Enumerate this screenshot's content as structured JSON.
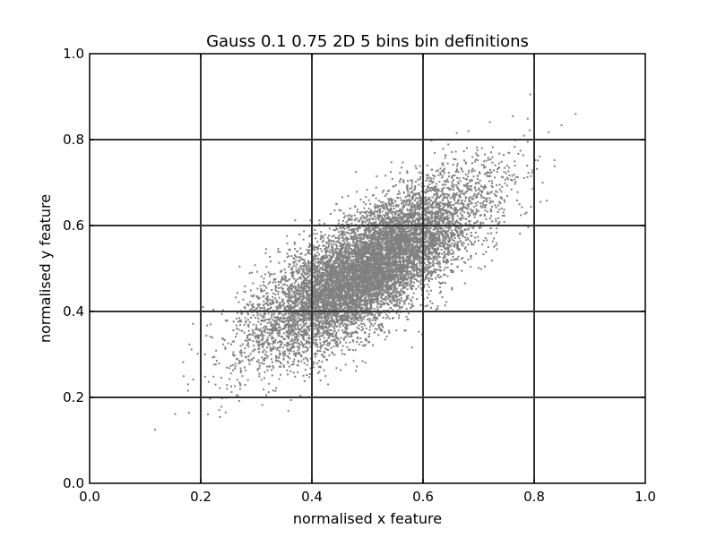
{
  "chart_data": {
    "type": "scatter",
    "title": "Gauss 0.1 0.75 2D 5 bins bin definitions",
    "xlabel": "normalised x feature",
    "ylabel": "normalised y feature",
    "xlim": [
      0.0,
      1.0
    ],
    "ylim": [
      0.0,
      1.0
    ],
    "x_ticks": [
      "0.0",
      "0.2",
      "0.4",
      "0.6",
      "0.8",
      "1.0"
    ],
    "y_ticks": [
      "0.0",
      "0.2",
      "0.4",
      "0.6",
      "0.8",
      "1.0"
    ],
    "bin_edges_x": [
      0.2,
      0.4,
      0.6,
      0.8
    ],
    "bin_edges_y": [
      0.2,
      0.4,
      0.6,
      0.8
    ],
    "grid": true,
    "point_color": "#808080",
    "grid_color": "#333333",
    "distribution": {
      "kind": "bivariate gaussian",
      "mean": [
        0.5,
        0.5
      ],
      "std": [
        0.1,
        0.1
      ],
      "correlation": 0.75,
      "count": 10000
    }
  }
}
